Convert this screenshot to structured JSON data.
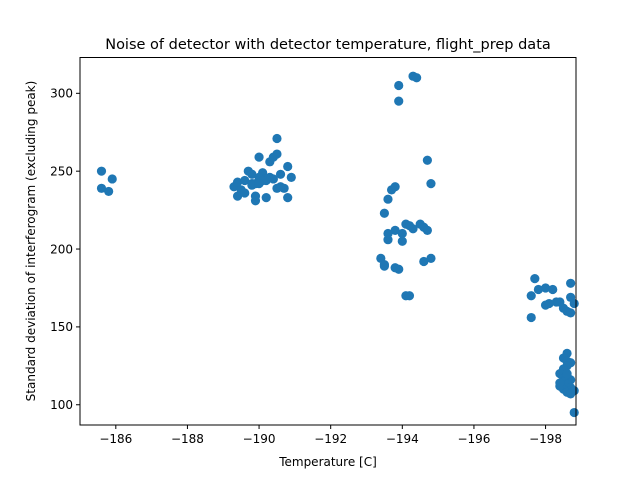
{
  "chart_data": {
    "type": "scatter",
    "title": "Noise of detector with detector temperature, flight_prep data",
    "xlabel": "Temperature [C]",
    "ylabel": "Standard deviation of interferogram (excluding peak)",
    "xlim": [
      -185.0,
      -198.85
    ],
    "ylim": [
      87,
      323
    ],
    "x_inverted": true,
    "xticks": [
      -186,
      -188,
      -190,
      -192,
      -194,
      -196,
      -198
    ],
    "xtick_labels": [
      "−186",
      "−188",
      "−190",
      "−192",
      "−194",
      "−196",
      "−198"
    ],
    "yticks": [
      100,
      150,
      200,
      250,
      300
    ],
    "ytick_labels": [
      "100",
      "150",
      "200",
      "250",
      "300"
    ],
    "grid": false,
    "legend": "none",
    "marker_color": "#1f77b4",
    "series": [
      {
        "x": [
          -185.6,
          -185.9,
          -185.8,
          -185.6,
          -189.3,
          -189.4,
          -189.5,
          -189.6,
          -189.4,
          -189.7,
          -189.8,
          -189.9,
          -189.8,
          -189.9,
          -190.0,
          -190.1,
          -190.2,
          -190.0,
          -190.3,
          -190.4,
          -190.5,
          -190.5,
          -190.6,
          -190.8,
          -190.9,
          -190.7,
          -190.3,
          -190.2,
          -190.1,
          -189.9,
          -189.8,
          -189.6,
          -190.5,
          -190.6,
          -190.8,
          -190.0,
          -190.2,
          -190.4,
          -194.3,
          -194.4,
          -193.9,
          -193.9,
          -193.5,
          -193.6,
          -193.6,
          -193.7,
          -193.8,
          -193.4,
          -193.5,
          -193.9,
          -194.0,
          -194.1,
          -194.3,
          -194.5,
          -194.6,
          -194.8,
          -194.7,
          -194.1,
          -194.2,
          -194.6,
          -194.0,
          -193.8,
          -193.6,
          -193.5,
          -193.8,
          -194.2,
          -194.7,
          -194.8,
          -197.6,
          -197.7,
          -197.8,
          -198.0,
          -198.2,
          -198.4,
          -198.3,
          -198.0,
          -198.1,
          -198.5,
          -198.7,
          -198.6,
          -197.6,
          -198.7,
          -198.8,
          -198.7,
          -198.6,
          -198.5,
          -198.6,
          -198.7,
          -198.6,
          -198.5,
          -198.4,
          -198.5,
          -198.6,
          -198.7,
          -198.5,
          -198.6,
          -198.4,
          -198.7,
          -198.5,
          -198.6,
          -198.8,
          -198.6,
          -198.7,
          -198.5,
          -198.6,
          -198.4,
          -198.6,
          -198.8
        ],
        "y": [
          250,
          245,
          237,
          239,
          240,
          243,
          238,
          244,
          234,
          250,
          242,
          231,
          248,
          234,
          259,
          249,
          244,
          246,
          256,
          259,
          271,
          261,
          248,
          253,
          246,
          239,
          246,
          245,
          244,
          242,
          241,
          236,
          239,
          240,
          233,
          242,
          233,
          245,
          311,
          310,
          305,
          295,
          223,
          232,
          206,
          238,
          240,
          194,
          189,
          187,
          205,
          216,
          213,
          216,
          214,
          194,
          257,
          170,
          170,
          192,
          210,
          212,
          210,
          190,
          188,
          215,
          212,
          242,
          170,
          181,
          174,
          175,
          174,
          166,
          166,
          164,
          165,
          162,
          169,
          160,
          156,
          159,
          165,
          178,
          133,
          130,
          128,
          127,
          125,
          123,
          120,
          118,
          117,
          116,
          115,
          113,
          112,
          111,
          110,
          109,
          109,
          108,
          107,
          122,
          119,
          114,
          120,
          95
        ]
      }
    ]
  }
}
